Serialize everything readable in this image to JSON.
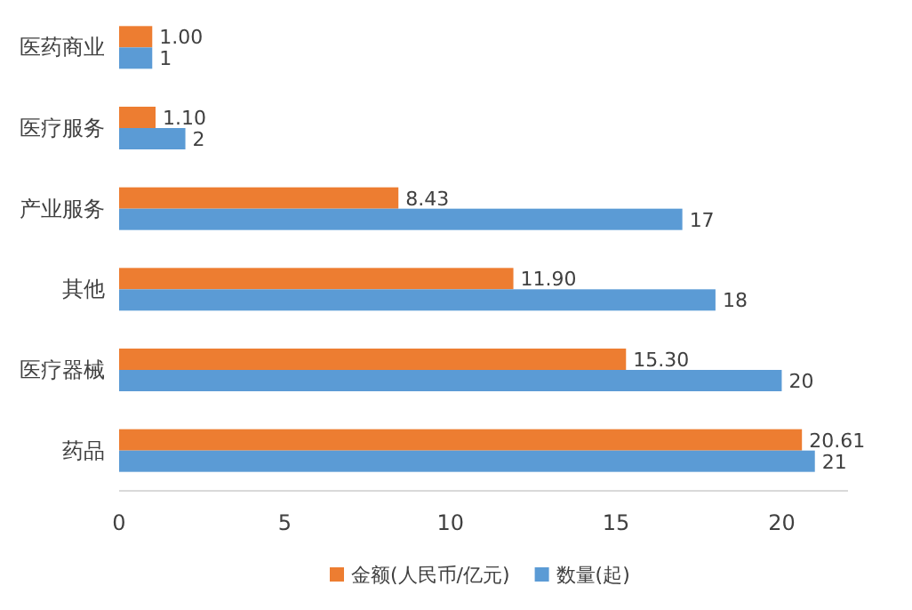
{
  "chart_data": {
    "type": "bar",
    "orientation": "horizontal",
    "categories": [
      "医药商业",
      "医疗服务",
      "产业服务",
      "其他",
      "医疗器械",
      "药品"
    ],
    "series": [
      {
        "name": "金额(人民币/亿元)",
        "color": "#ed7d31",
        "values": [
          1.0,
          1.1,
          8.43,
          11.9,
          15.3,
          20.61
        ],
        "value_labels": [
          "1.00",
          "1.10",
          "8.43",
          "11.90",
          "15.30",
          "20.61"
        ]
      },
      {
        "name": "数量(起)",
        "color": "#5b9bd5",
        "values": [
          1,
          2,
          17,
          18,
          20,
          21
        ],
        "value_labels": [
          "1",
          "2",
          "17",
          "18",
          "20",
          "21"
        ]
      }
    ],
    "xlim": [
      0,
      22
    ],
    "xticks": [
      0,
      5,
      10,
      15,
      20
    ],
    "grid": false,
    "legend": "bottom"
  }
}
